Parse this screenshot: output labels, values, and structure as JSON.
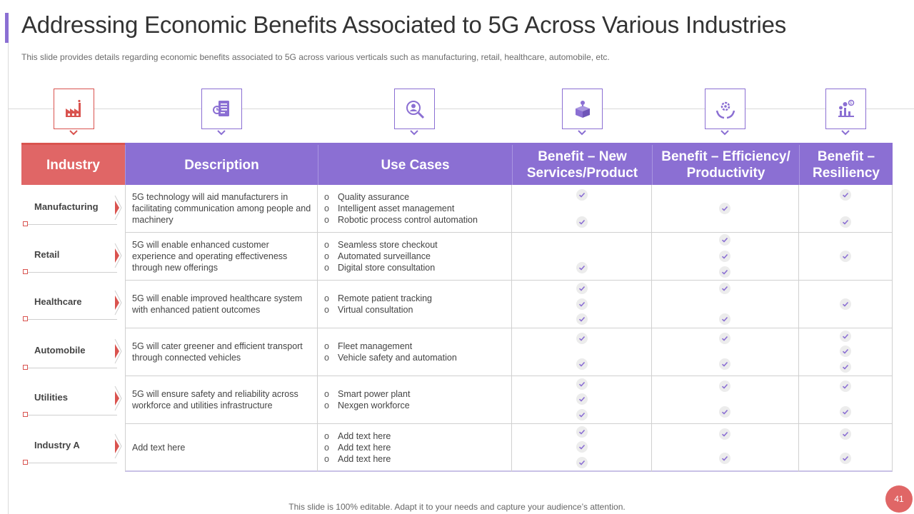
{
  "header": {
    "title": "Addressing Economic Benefits Associated to 5G Across Various Industries",
    "subtitle": "This slide provides details regarding economic benefits associated to 5G across various verticals such as manufacturing, retail, healthcare, automobile, etc."
  },
  "icons": [
    "factory-icon",
    "document-icon",
    "user-search-icon",
    "box-idea-icon",
    "hand-gear-icon",
    "growth-plants-icon"
  ],
  "table": {
    "headers": [
      "Industry",
      "Description",
      "Use Cases",
      "Benefit – New Services/Product",
      "Benefit – Efficiency/ Productivity",
      "Benefit – Resiliency"
    ],
    "rows": [
      {
        "industry": "Manufacturing",
        "description": "5G technology will aid manufacturers in facilitating communication among people and machinery",
        "use_cases": [
          "Quality assurance",
          "Intelligent asset management",
          "Robotic process control automation"
        ]
      },
      {
        "industry": "Retail",
        "description": "5G will enable enhanced customer experience and operating effectiveness through new offerings",
        "use_cases": [
          "Seamless store checkout",
          "Automated surveillance",
          "Digital store consultation"
        ]
      },
      {
        "industry": "Healthcare",
        "description": "5G will enable improved healthcare system with enhanced patient outcomes",
        "use_cases": [
          "Remote patient tracking",
          "Virtual consultation"
        ]
      },
      {
        "industry": "Automobile",
        "description": "5G will cater greener and efficient transport through connected vehicles",
        "use_cases": [
          "Fleet management",
          "Vehicle safety and automation"
        ]
      },
      {
        "industry": "Utilities",
        "description": "5G will ensure safety and reliability across workforce and utilities infrastructure",
        "use_cases": [
          "Smart power plant",
          "Nexgen workforce"
        ]
      },
      {
        "industry": "Industry A",
        "description": "Add text here",
        "use_cases": [
          "Add text here",
          "Add text here",
          "Add text here"
        ]
      }
    ],
    "use_case_bullet": "o"
  },
  "footer": {
    "note": "This slide is 100% editable. Adapt it to your needs and capture your audience’s attention.",
    "page_number": "41"
  },
  "colors": {
    "accent_purple": "#8b6fd3",
    "accent_red": "#e06666"
  }
}
